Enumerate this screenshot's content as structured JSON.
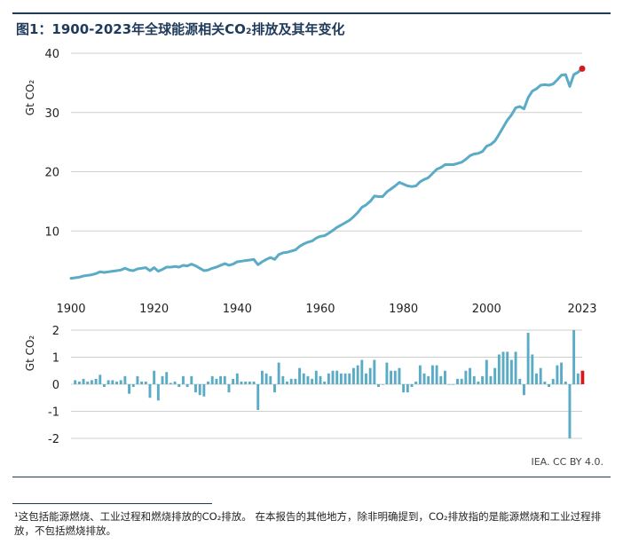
{
  "title": "图1：1900-2023年全球能源相关CO₂排放及其年变化",
  "credit": "IEA. CC BY 4.0.",
  "footnote": "¹这包括能源燃烧、工业过程和燃烧排放的CO₂排放。 在本报告的其他地方，除非明确提到，CO₂排放指的是能源燃烧和工业过程排放，不包括燃烧排放。",
  "colors": {
    "line": "#5aabc6",
    "bar": "#5aabc6",
    "highlight": "#d7191c",
    "grid": "#cfcfcf"
  },
  "chart_data": [
    {
      "type": "line",
      "title": "1900-2023年全球能源相关CO₂排放",
      "ylabel": "Gt CO₂",
      "ylim": [
        0,
        40
      ],
      "yticks": [
        10,
        20,
        30,
        40
      ],
      "xlim": [
        1900,
        2023
      ],
      "xticks": [
        1900,
        1920,
        1940,
        1960,
        1980,
        2000,
        2023
      ],
      "highlight_point": {
        "x": 2023,
        "y": 37.4
      },
      "x": [
        1900,
        1901,
        1902,
        1903,
        1904,
        1905,
        1906,
        1907,
        1908,
        1909,
        1910,
        1911,
        1912,
        1913,
        1914,
        1915,
        1916,
        1917,
        1918,
        1919,
        1920,
        1921,
        1922,
        1923,
        1924,
        1925,
        1926,
        1927,
        1928,
        1929,
        1930,
        1931,
        1932,
        1933,
        1934,
        1935,
        1936,
        1937,
        1938,
        1939,
        1940,
        1941,
        1942,
        1943,
        1944,
        1945,
        1946,
        1947,
        1948,
        1949,
        1950,
        1951,
        1952,
        1953,
        1954,
        1955,
        1956,
        1957,
        1958,
        1959,
        1960,
        1961,
        1962,
        1963,
        1964,
        1965,
        1966,
        1967,
        1968,
        1969,
        1970,
        1971,
        1972,
        1973,
        1974,
        1975,
        1976,
        1977,
        1978,
        1979,
        1980,
        1981,
        1982,
        1983,
        1984,
        1985,
        1986,
        1987,
        1988,
        1989,
        1990,
        1991,
        1992,
        1993,
        1994,
        1995,
        1996,
        1997,
        1998,
        1999,
        2000,
        2001,
        2002,
        2003,
        2004,
        2005,
        2006,
        2007,
        2008,
        2009,
        2010,
        2011,
        2012,
        2013,
        2014,
        2015,
        2016,
        2017,
        2018,
        2019,
        2020,
        2021,
        2022,
        2023
      ],
      "values": [
        2.0,
        2.1,
        2.2,
        2.4,
        2.5,
        2.6,
        2.8,
        3.1,
        3.0,
        3.1,
        3.2,
        3.3,
        3.4,
        3.7,
        3.4,
        3.3,
        3.6,
        3.7,
        3.8,
        3.3,
        3.8,
        3.2,
        3.5,
        3.9,
        3.9,
        4.0,
        3.9,
        4.2,
        4.1,
        4.4,
        4.1,
        3.7,
        3.3,
        3.4,
        3.7,
        3.9,
        4.2,
        4.5,
        4.2,
        4.4,
        4.8,
        4.9,
        5.0,
        5.1,
        5.2,
        4.3,
        4.8,
        5.2,
        5.5,
        5.2,
        6.0,
        6.3,
        6.4,
        6.6,
        6.8,
        7.4,
        7.8,
        8.1,
        8.3,
        8.8,
        9.1,
        9.2,
        9.6,
        10.1,
        10.6,
        11.0,
        11.4,
        11.8,
        12.4,
        13.1,
        14.0,
        14.4,
        15.0,
        15.9,
        15.8,
        15.8,
        16.6,
        17.1,
        17.6,
        18.2,
        17.9,
        17.6,
        17.5,
        17.6,
        18.3,
        18.7,
        19.0,
        19.7,
        20.4,
        20.7,
        21.2,
        21.2,
        21.2,
        21.4,
        21.6,
        22.1,
        22.7,
        23.0,
        23.1,
        23.4,
        24.3,
        24.6,
        25.2,
        26.3,
        27.5,
        28.7,
        29.6,
        30.8,
        31.0,
        30.6,
        32.5,
        33.6,
        34.0,
        34.6,
        34.7,
        34.6,
        34.8,
        35.5,
        36.3,
        36.4,
        34.4,
        36.4,
        36.8,
        37.4
      ]
    },
    {
      "type": "bar",
      "title": "年变化",
      "ylabel": "Gt CO₂",
      "ylim": [
        -2,
        2
      ],
      "yticks": [
        -2,
        -1,
        0,
        1,
        2
      ],
      "highlight_last": true,
      "x": [
        1901,
        1902,
        1903,
        1904,
        1905,
        1906,
        1907,
        1908,
        1909,
        1910,
        1911,
        1912,
        1913,
        1914,
        1915,
        1916,
        1917,
        1918,
        1919,
        1920,
        1921,
        1922,
        1923,
        1924,
        1925,
        1926,
        1927,
        1928,
        1929,
        1930,
        1931,
        1932,
        1933,
        1934,
        1935,
        1936,
        1937,
        1938,
        1939,
        1940,
        1941,
        1942,
        1943,
        1944,
        1945,
        1946,
        1947,
        1948,
        1949,
        1950,
        1951,
        1952,
        1953,
        1954,
        1955,
        1956,
        1957,
        1958,
        1959,
        1960,
        1961,
        1962,
        1963,
        1964,
        1965,
        1966,
        1967,
        1968,
        1969,
        1970,
        1971,
        1972,
        1973,
        1974,
        1975,
        1976,
        1977,
        1978,
        1979,
        1980,
        1981,
        1982,
        1983,
        1984,
        1985,
        1986,
        1987,
        1988,
        1989,
        1990,
        1991,
        1992,
        1993,
        1994,
        1995,
        1996,
        1997,
        1998,
        1999,
        2000,
        2001,
        2002,
        2003,
        2004,
        2005,
        2006,
        2007,
        2008,
        2009,
        2010,
        2011,
        2012,
        2013,
        2014,
        2015,
        2016,
        2017,
        2018,
        2019,
        2020,
        2021,
        2022,
        2023
      ],
      "values": [
        0.15,
        0.1,
        0.2,
        0.1,
        0.15,
        0.2,
        0.35,
        -0.1,
        0.15,
        0.15,
        0.1,
        0.15,
        0.3,
        -0.35,
        -0.1,
        0.3,
        0.1,
        0.1,
        -0.5,
        0.5,
        -0.6,
        0.3,
        0.45,
        0.05,
        0.1,
        -0.1,
        0.3,
        -0.1,
        0.3,
        -0.3,
        -0.4,
        -0.45,
        0.1,
        0.3,
        0.2,
        0.3,
        0.3,
        -0.3,
        0.2,
        0.4,
        0.1,
        0.1,
        0.1,
        0.1,
        -0.95,
        0.5,
        0.4,
        0.3,
        -0.3,
        0.8,
        0.3,
        0.1,
        0.2,
        0.2,
        0.6,
        0.4,
        0.3,
        0.2,
        0.5,
        0.3,
        0.1,
        0.4,
        0.5,
        0.5,
        0.4,
        0.4,
        0.4,
        0.6,
        0.7,
        0.9,
        0.4,
        0.6,
        0.9,
        -0.1,
        0.0,
        0.8,
        0.5,
        0.5,
        0.6,
        -0.3,
        -0.3,
        -0.1,
        0.1,
        0.7,
        0.4,
        0.3,
        0.7,
        0.7,
        0.3,
        0.5,
        0.0,
        0.0,
        0.2,
        0.2,
        0.5,
        0.6,
        0.3,
        0.1,
        0.3,
        0.9,
        0.3,
        0.6,
        1.1,
        1.2,
        1.2,
        0.9,
        1.2,
        0.2,
        -0.4,
        1.9,
        1.1,
        0.4,
        0.6,
        0.1,
        -0.1,
        0.2,
        0.7,
        0.8,
        0.1,
        -2.0,
        2.0,
        0.4,
        0.5
      ]
    }
  ]
}
